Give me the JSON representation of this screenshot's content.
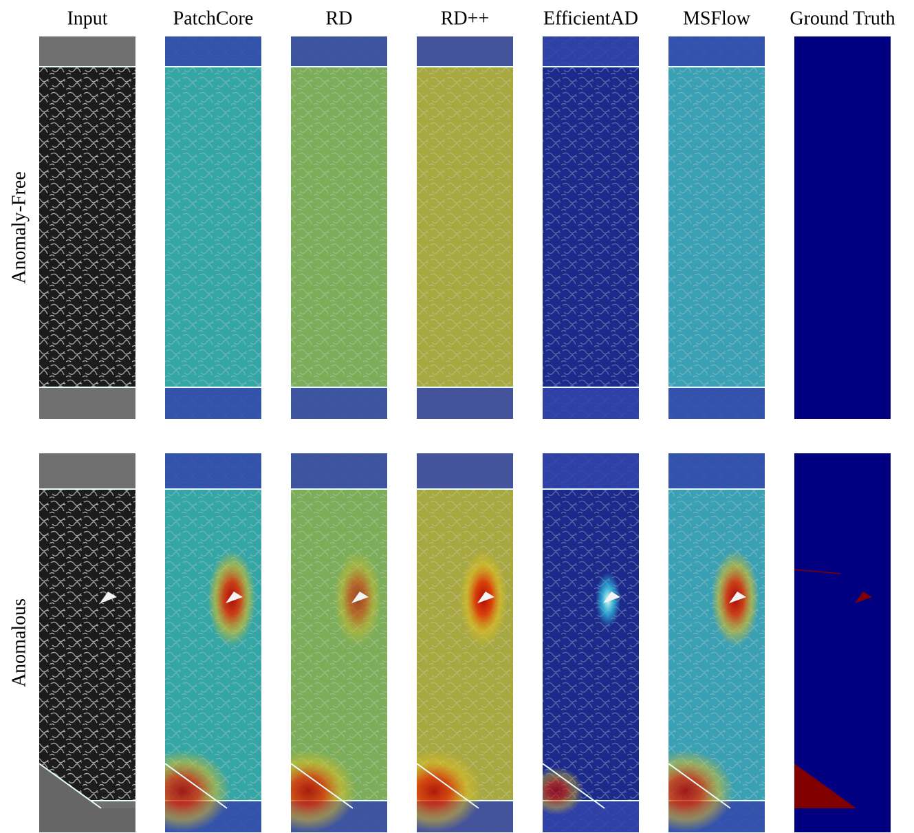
{
  "header": {
    "columns": [
      "Input",
      "PatchCore",
      "RD",
      "RD++",
      "EfficientAD",
      "MSFlow",
      "Ground Truth"
    ]
  },
  "rows": [
    {
      "label": "Anomaly-Free"
    },
    {
      "label": "Anomalous"
    }
  ]
}
